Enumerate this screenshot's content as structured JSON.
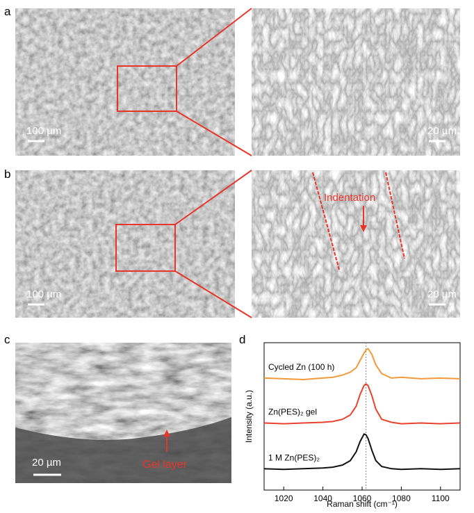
{
  "panels": {
    "a": {
      "letter": "a",
      "scale_left": "100 µm",
      "scale_right": "20 µm"
    },
    "b": {
      "letter": "b",
      "scale_left": "100 µm",
      "scale_right": "20 µm",
      "annotation": "Indentation"
    },
    "c": {
      "letter": "c",
      "scale": "20 µm",
      "annotation": "Gel layer"
    },
    "d": {
      "letter": "d"
    }
  },
  "chart_data": {
    "type": "line",
    "x_label": "Raman shift (cm⁻¹)",
    "y_label": "Intensity (a.u.)",
    "x": [
      1010,
      1020,
      1030,
      1040,
      1045,
      1050,
      1054,
      1057,
      1059,
      1061,
      1062,
      1063,
      1065,
      1067,
      1070,
      1075,
      1080,
      1090,
      1100,
      1110
    ],
    "series": [
      {
        "name": "Cycled Zn (100 h)",
        "color": "#f29a3a",
        "values": [
          7.6,
          7.55,
          7.5,
          7.6,
          7.65,
          7.8,
          8.0,
          8.3,
          8.8,
          9.3,
          9.5,
          9.6,
          9.2,
          8.5,
          7.9,
          7.6,
          7.65,
          7.55,
          7.6,
          7.55
        ]
      },
      {
        "name": "Zn(PES)₂ gel",
        "color": "#e8412c",
        "values": [
          4.55,
          4.5,
          4.55,
          4.6,
          4.65,
          4.8,
          5.1,
          5.7,
          6.5,
          7.1,
          7.2,
          7.1,
          6.4,
          5.5,
          4.8,
          4.6,
          4.5,
          4.55,
          4.5,
          4.55
        ]
      },
      {
        "name": "1 M Zn(PES)₂",
        "color": "#111111",
        "values": [
          1.45,
          1.4,
          1.45,
          1.5,
          1.55,
          1.7,
          2.0,
          2.6,
          3.3,
          3.8,
          3.75,
          3.5,
          2.7,
          2.0,
          1.6,
          1.45,
          1.4,
          1.45,
          1.4,
          1.45
        ]
      }
    ],
    "reference_x": 1062,
    "xlim": [
      1010,
      1110
    ],
    "xticks": [
      1020,
      1040,
      1060,
      1080,
      1100
    ],
    "ylim": [
      0,
      10
    ]
  }
}
